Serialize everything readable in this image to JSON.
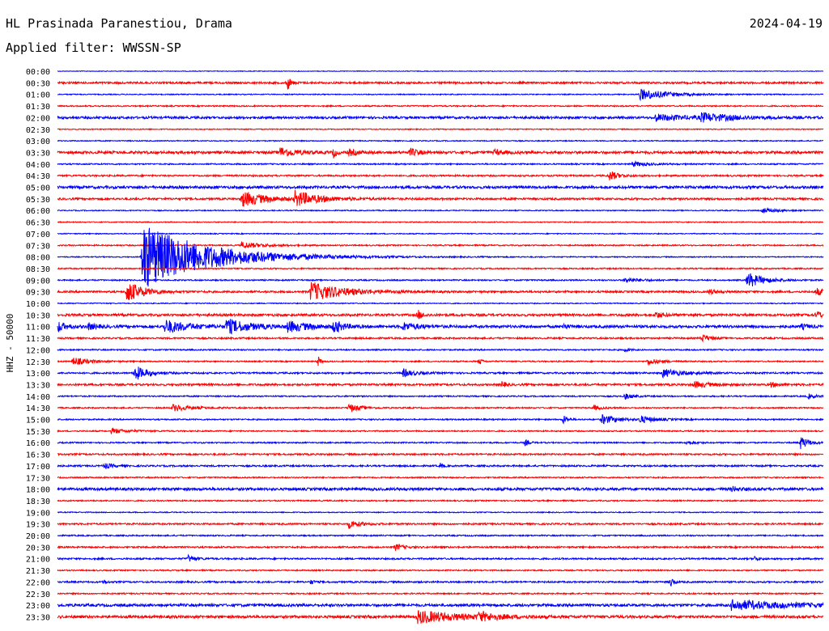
{
  "header": {
    "station": "HL Prasinada Paranestiou, Drama",
    "date": "2024-04-19",
    "filter": "Applied filter: WWSSN-SP"
  },
  "chart_data": {
    "type": "line",
    "title": "HL Prasinada Paranestiou, Drama",
    "ylabel": "HHZ - 50000",
    "colors": {
      "odd": "#0000ff",
      "even": "#ff0000"
    },
    "trace_labels": [
      "00:00",
      "00:30",
      "01:00",
      "01:30",
      "02:00",
      "02:30",
      "03:00",
      "03:30",
      "04:00",
      "04:30",
      "05:00",
      "05:30",
      "06:00",
      "06:30",
      "07:00",
      "07:30",
      "08:00",
      "08:30",
      "09:00",
      "09:30",
      "10:00",
      "10:30",
      "11:00",
      "11:30",
      "12:00",
      "12:30",
      "13:00",
      "13:30",
      "14:00",
      "14:30",
      "15:00",
      "15:30",
      "16:00",
      "16:30",
      "17:00",
      "17:30",
      "18:00",
      "18:30",
      "19:00",
      "19:30",
      "20:00",
      "20:30",
      "21:00",
      "21:30",
      "22:00",
      "22:30",
      "23:00",
      "23:30"
    ],
    "noise": [
      0.4,
      1.2,
      0.6,
      0.8,
      1.4,
      0.6,
      0.6,
      1.6,
      0.8,
      1.0,
      1.6,
      1.2,
      0.6,
      0.6,
      0.6,
      0.8,
      0.6,
      0.8,
      0.8,
      1.2,
      0.6,
      1.4,
      1.6,
      1.0,
      0.8,
      0.8,
      1.0,
      1.2,
      0.8,
      0.8,
      0.8,
      0.8,
      0.8,
      1.0,
      1.0,
      0.8,
      1.6,
      0.8,
      0.6,
      1.0,
      0.8,
      1.0,
      1.0,
      0.8,
      1.0,
      0.8,
      1.6,
      1.6
    ],
    "events": [
      {
        "trace": 1,
        "t": 0.3,
        "amp": 10,
        "dur": 0.004
      },
      {
        "trace": 2,
        "t": 0.76,
        "amp": 7,
        "dur": 0.035
      },
      {
        "trace": 4,
        "t": 0.78,
        "amp": 4,
        "dur": 0.04
      },
      {
        "trace": 4,
        "t": 0.84,
        "amp": 5,
        "dur": 0.04
      },
      {
        "trace": 7,
        "t": 0.29,
        "amp": 6,
        "dur": 0.02
      },
      {
        "trace": 7,
        "t": 0.36,
        "amp": 9,
        "dur": 0.003
      },
      {
        "trace": 7,
        "t": 0.38,
        "amp": 4,
        "dur": 0.01
      },
      {
        "trace": 7,
        "t": 0.46,
        "amp": 5,
        "dur": 0.01
      },
      {
        "trace": 7,
        "t": 0.57,
        "amp": 4,
        "dur": 0.01
      },
      {
        "trace": 8,
        "t": 0.75,
        "amp": 3,
        "dur": 0.02
      },
      {
        "trace": 9,
        "t": 0.72,
        "amp": 7,
        "dur": 0.01
      },
      {
        "trace": 11,
        "t": 0.24,
        "amp": 10,
        "dur": 0.03
      },
      {
        "trace": 11,
        "t": 0.31,
        "amp": 9,
        "dur": 0.03
      },
      {
        "trace": 12,
        "t": 0.92,
        "amp": 3,
        "dur": 0.02
      },
      {
        "trace": 15,
        "t": 0.24,
        "amp": 4,
        "dur": 0.025
      },
      {
        "trace": 16,
        "t": 0.11,
        "amp": 42,
        "dur": 0.08
      },
      {
        "trace": 18,
        "t": 0.74,
        "amp": 3,
        "dur": 0.02
      },
      {
        "trace": 18,
        "t": 0.9,
        "amp": 10,
        "dur": 0.02
      },
      {
        "trace": 19,
        "t": 0.09,
        "amp": 14,
        "dur": 0.02
      },
      {
        "trace": 19,
        "t": 0.33,
        "amp": 12,
        "dur": 0.04
      },
      {
        "trace": 19,
        "t": 0.85,
        "amp": 3,
        "dur": 0.01
      },
      {
        "trace": 19,
        "t": 0.99,
        "amp": 5,
        "dur": 0.01
      },
      {
        "trace": 21,
        "t": 0.47,
        "amp": 7,
        "dur": 0.005
      },
      {
        "trace": 21,
        "t": 0.78,
        "amp": 4,
        "dur": 0.01
      },
      {
        "trace": 21,
        "t": 0.99,
        "amp": 5,
        "dur": 0.01
      },
      {
        "trace": 22,
        "t": 0.001,
        "amp": 6,
        "dur": 0.01
      },
      {
        "trace": 22,
        "t": 0.04,
        "amp": 4,
        "dur": 0.01
      },
      {
        "trace": 22,
        "t": 0.14,
        "amp": 8,
        "dur": 0.03
      },
      {
        "trace": 22,
        "t": 0.22,
        "amp": 9,
        "dur": 0.03
      },
      {
        "trace": 22,
        "t": 0.3,
        "amp": 6,
        "dur": 0.03
      },
      {
        "trace": 22,
        "t": 0.36,
        "amp": 9,
        "dur": 0.01
      },
      {
        "trace": 22,
        "t": 0.45,
        "amp": 5,
        "dur": 0.02
      },
      {
        "trace": 22,
        "t": 0.66,
        "amp": 4,
        "dur": 0.005
      },
      {
        "trace": 22,
        "t": 0.97,
        "amp": 3,
        "dur": 0.01
      },
      {
        "trace": 23,
        "t": 0.84,
        "amp": 5,
        "dur": 0.01
      },
      {
        "trace": 24,
        "t": 0.74,
        "amp": 3,
        "dur": 0.005
      },
      {
        "trace": 25,
        "t": 0.02,
        "amp": 5,
        "dur": 0.02
      },
      {
        "trace": 25,
        "t": 0.34,
        "amp": 7,
        "dur": 0.003
      },
      {
        "trace": 25,
        "t": 0.55,
        "amp": 7,
        "dur": 0.003
      },
      {
        "trace": 25,
        "t": 0.77,
        "amp": 4,
        "dur": 0.015
      },
      {
        "trace": 26,
        "t": 0.1,
        "amp": 10,
        "dur": 0.015
      },
      {
        "trace": 26,
        "t": 0.45,
        "amp": 5,
        "dur": 0.015
      },
      {
        "trace": 26,
        "t": 0.79,
        "amp": 5,
        "dur": 0.025
      },
      {
        "trace": 27,
        "t": 0.58,
        "amp": 5,
        "dur": 0.004
      },
      {
        "trace": 27,
        "t": 0.83,
        "amp": 4,
        "dur": 0.02
      },
      {
        "trace": 27,
        "t": 0.93,
        "amp": 3,
        "dur": 0.01
      },
      {
        "trace": 28,
        "t": 0.74,
        "amp": 4,
        "dur": 0.01
      },
      {
        "trace": 28,
        "t": 0.98,
        "amp": 3,
        "dur": 0.01
      },
      {
        "trace": 29,
        "t": 0.15,
        "amp": 4,
        "dur": 0.025
      },
      {
        "trace": 29,
        "t": 0.38,
        "amp": 5,
        "dur": 0.015
      },
      {
        "trace": 29,
        "t": 0.7,
        "amp": 3,
        "dur": 0.01
      },
      {
        "trace": 30,
        "t": 0.66,
        "amp": 6,
        "dur": 0.005
      },
      {
        "trace": 30,
        "t": 0.71,
        "amp": 6,
        "dur": 0.02
      },
      {
        "trace": 30,
        "t": 0.76,
        "amp": 4,
        "dur": 0.02
      },
      {
        "trace": 31,
        "t": 0.07,
        "amp": 3,
        "dur": 0.02
      },
      {
        "trace": 32,
        "t": 0.61,
        "amp": 4,
        "dur": 0.005
      },
      {
        "trace": 32,
        "t": 0.82,
        "amp": 3,
        "dur": 0.01
      },
      {
        "trace": 32,
        "t": 0.97,
        "amp": 8,
        "dur": 0.01
      },
      {
        "trace": 34,
        "t": 0.06,
        "amp": 4,
        "dur": 0.01
      },
      {
        "trace": 34,
        "t": 0.5,
        "amp": 4,
        "dur": 0.003
      },
      {
        "trace": 36,
        "t": 0.88,
        "amp": 3,
        "dur": 0.01
      },
      {
        "trace": 39,
        "t": 0.38,
        "amp": 5,
        "dur": 0.015
      },
      {
        "trace": 41,
        "t": 0.44,
        "amp": 4,
        "dur": 0.01
      },
      {
        "trace": 42,
        "t": 0.17,
        "amp": 4,
        "dur": 0.01
      },
      {
        "trace": 42,
        "t": 0.91,
        "amp": 3,
        "dur": 0.005
      },
      {
        "trace": 44,
        "t": 0.06,
        "amp": 4,
        "dur": 0.003
      },
      {
        "trace": 44,
        "t": 0.8,
        "amp": 7,
        "dur": 0.004
      },
      {
        "trace": 44,
        "t": 0.33,
        "amp": 3,
        "dur": 0.005
      },
      {
        "trace": 46,
        "t": 0.88,
        "amp": 6,
        "dur": 0.07
      },
      {
        "trace": 47,
        "t": 0.47,
        "amp": 8,
        "dur": 0.05
      },
      {
        "trace": 47,
        "t": 0.55,
        "amp": 5,
        "dur": 0.02
      }
    ]
  }
}
